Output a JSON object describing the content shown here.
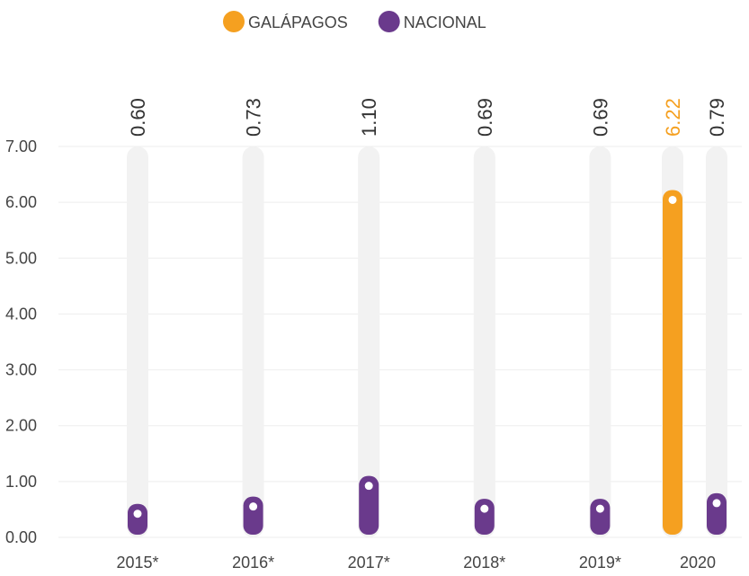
{
  "chart_data": {
    "type": "bar",
    "categories": [
      "2015*",
      "2016*",
      "2017*",
      "2018*",
      "2019*",
      "2020"
    ],
    "series": [
      {
        "name": "GALÁPAGOS",
        "color": "#f5a020",
        "values": [
          null,
          null,
          null,
          null,
          null,
          6.22
        ],
        "value_labels": [
          null,
          null,
          null,
          null,
          null,
          "6.22"
        ]
      },
      {
        "name": "NACIONAL",
        "color": "#6a3a8c",
        "values": [
          0.6,
          0.73,
          1.1,
          0.69,
          0.69,
          0.79
        ],
        "value_labels": [
          "0.60",
          "0.73",
          "1.10",
          "0.69",
          "0.69",
          "0.79"
        ]
      }
    ],
    "ylim": [
      0,
      7
    ],
    "yticks": [
      {
        "value": 0,
        "label": "0.00"
      },
      {
        "value": 1,
        "label": "1.00"
      },
      {
        "value": 2,
        "label": "2.00"
      },
      {
        "value": 3,
        "label": "3.00"
      },
      {
        "value": 4,
        "label": "4.00"
      },
      {
        "value": 5,
        "label": "5.00"
      },
      {
        "value": 6,
        "label": "6.00"
      },
      {
        "value": 7,
        "label": "7.00"
      }
    ],
    "grid": true,
    "legend": "top"
  }
}
